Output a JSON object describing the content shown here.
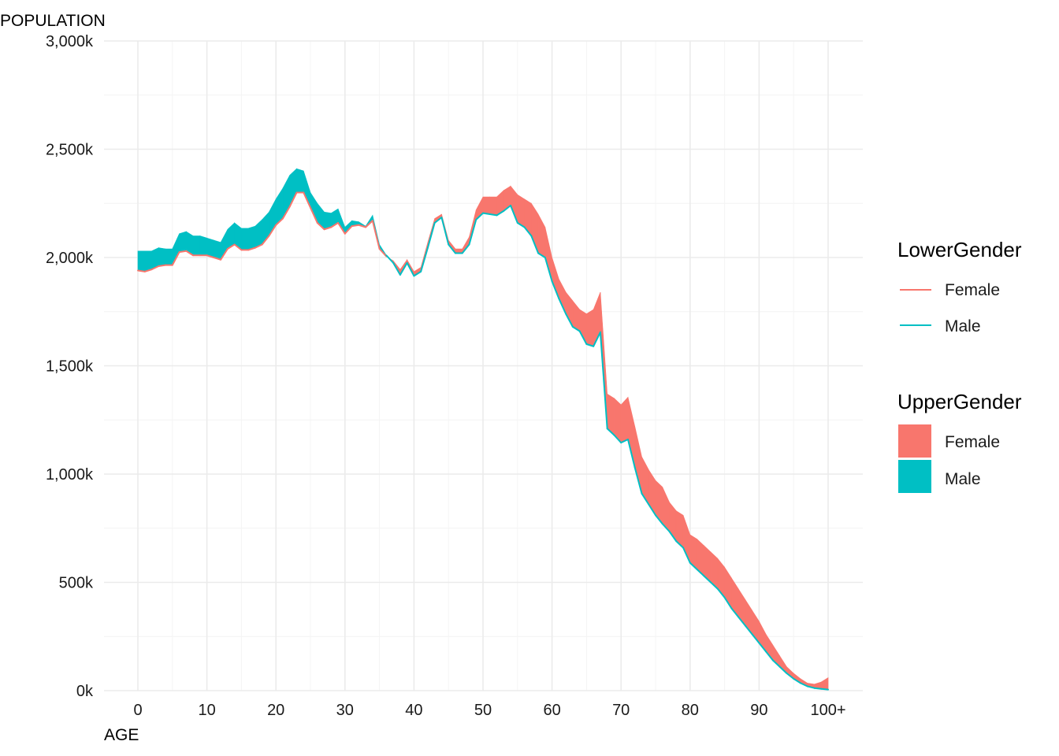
{
  "chart_data": {
    "type": "area",
    "xlabel": "AGE",
    "ylabel": "POPULATION",
    "xlim": [
      0,
      100
    ],
    "ylim": [
      0,
      3000000
    ],
    "grid": true,
    "x_ticks": [
      0,
      10,
      20,
      30,
      40,
      50,
      60,
      70,
      80,
      90,
      100
    ],
    "x_tick_labels": [
      "0",
      "10",
      "20",
      "30",
      "40",
      "50",
      "60",
      "70",
      "80",
      "90",
      "100+"
    ],
    "y_ticks": [
      0,
      500000,
      1000000,
      1500000,
      2000000,
      2500000,
      3000000
    ],
    "y_tick_labels": [
      "0k",
      "500k",
      "1,000k",
      "1,500k",
      "2,000k",
      "2,500k",
      "3,000k"
    ],
    "legend_placement": "right",
    "colors": {
      "Female": "#F8766D",
      "Male": "#00BFC4"
    },
    "legends": [
      {
        "title": "LowerGender",
        "key": "line",
        "entries": [
          "Female",
          "Male"
        ]
      },
      {
        "title": "UpperGender",
        "key": "fill",
        "entries": [
          "Female",
          "Male"
        ]
      }
    ],
    "x": [
      0,
      1,
      2,
      3,
      4,
      5,
      6,
      7,
      8,
      9,
      10,
      11,
      12,
      13,
      14,
      15,
      16,
      17,
      18,
      19,
      20,
      21,
      22,
      23,
      24,
      25,
      26,
      27,
      28,
      29,
      30,
      31,
      32,
      33,
      34,
      35,
      36,
      37,
      38,
      39,
      40,
      41,
      42,
      43,
      44,
      45,
      46,
      47,
      48,
      49,
      50,
      51,
      52,
      53,
      54,
      55,
      56,
      57,
      58,
      59,
      60,
      61,
      62,
      63,
      64,
      65,
      66,
      67,
      68,
      69,
      70,
      71,
      72,
      73,
      74,
      75,
      76,
      77,
      78,
      79,
      80,
      81,
      82,
      83,
      84,
      85,
      86,
      87,
      88,
      89,
      90,
      91,
      92,
      93,
      94,
      95,
      96,
      97,
      98,
      99,
      100
    ],
    "series": [
      {
        "name": "Female",
        "values": [
          1940000,
          1935000,
          1945000,
          1960000,
          1965000,
          1965000,
          2025000,
          2030000,
          2010000,
          2010000,
          2010000,
          2000000,
          1990000,
          2040000,
          2060000,
          2035000,
          2035000,
          2045000,
          2060000,
          2100000,
          2150000,
          2180000,
          2235000,
          2300000,
          2300000,
          2230000,
          2160000,
          2130000,
          2140000,
          2160000,
          2110000,
          2145000,
          2150000,
          2140000,
          2170000,
          2040000,
          2005000,
          1985000,
          1945000,
          1990000,
          1935000,
          1955000,
          2070000,
          2180000,
          2200000,
          2080000,
          2040000,
          2040000,
          2095000,
          2220000,
          2280000,
          2280000,
          2280000,
          2310000,
          2330000,
          2290000,
          2270000,
          2250000,
          2200000,
          2140000,
          2000000,
          1900000,
          1840000,
          1800000,
          1760000,
          1740000,
          1760000,
          1840000,
          1370000,
          1350000,
          1320000,
          1355000,
          1220000,
          1080000,
          1020000,
          970000,
          940000,
          870000,
          830000,
          810000,
          720000,
          700000,
          670000,
          640000,
          610000,
          570000,
          520000,
          470000,
          420000,
          370000,
          320000,
          260000,
          210000,
          160000,
          110000,
          80000,
          55000,
          35000,
          30000,
          40000,
          60000
        ]
      },
      {
        "name": "Male",
        "values": [
          2030000,
          2030000,
          2030000,
          2045000,
          2040000,
          2040000,
          2110000,
          2120000,
          2100000,
          2100000,
          2090000,
          2080000,
          2070000,
          2130000,
          2160000,
          2135000,
          2135000,
          2145000,
          2175000,
          2210000,
          2270000,
          2320000,
          2380000,
          2410000,
          2400000,
          2300000,
          2250000,
          2210000,
          2205000,
          2225000,
          2140000,
          2170000,
          2165000,
          2145000,
          2195000,
          2060000,
          2010000,
          1975000,
          1920000,
          1975000,
          1915000,
          1935000,
          2045000,
          2160000,
          2185000,
          2060000,
          2020000,
          2020000,
          2060000,
          2175000,
          2205000,
          2200000,
          2195000,
          2215000,
          2240000,
          2160000,
          2140000,
          2100000,
          2020000,
          2000000,
          1890000,
          1810000,
          1740000,
          1680000,
          1660000,
          1600000,
          1590000,
          1655000,
          1210000,
          1180000,
          1145000,
          1160000,
          1030000,
          910000,
          860000,
          810000,
          770000,
          735000,
          690000,
          660000,
          590000,
          560000,
          530000,
          500000,
          470000,
          430000,
          380000,
          340000,
          300000,
          260000,
          220000,
          180000,
          140000,
          110000,
          80000,
          55000,
          35000,
          20000,
          12000,
          8000,
          5000
        ]
      }
    ]
  }
}
